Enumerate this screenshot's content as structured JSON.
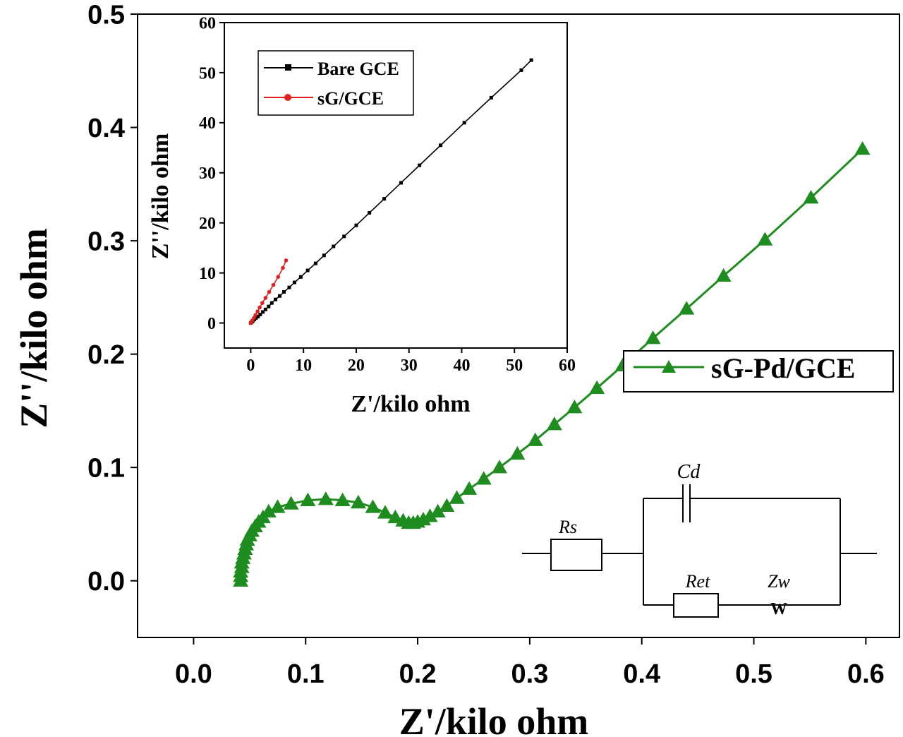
{
  "chart_data": [
    {
      "type": "line",
      "panel": "main",
      "title": "",
      "xlabel": "Z'/kilo ohm",
      "ylabel": "Z''/kilo ohm",
      "xlim": [
        -0.05,
        0.63
      ],
      "ylim": [
        -0.05,
        0.5
      ],
      "xticks": [
        0.0,
        0.1,
        0.2,
        0.3,
        0.4,
        0.5,
        0.6
      ],
      "yticks": [
        0.0,
        0.1,
        0.2,
        0.3,
        0.4,
        0.5
      ],
      "xtick_labels": [
        "0.0",
        "0.1",
        "0.2",
        "0.3",
        "0.4",
        "0.5",
        "0.6"
      ],
      "ytick_labels": [
        "0.0",
        "0.1",
        "0.2",
        "0.3",
        "0.4",
        "0.5"
      ],
      "legend_position": "middle-right",
      "series": [
        {
          "name": "sG-Pd/GCE",
          "color": "#1e8c1e",
          "marker": "triangle",
          "x": [
            0.042,
            0.042,
            0.042,
            0.043,
            0.043,
            0.044,
            0.045,
            0.046,
            0.047,
            0.048,
            0.05,
            0.052,
            0.055,
            0.058,
            0.062,
            0.067,
            0.075,
            0.087,
            0.102,
            0.118,
            0.133,
            0.147,
            0.16,
            0.171,
            0.18,
            0.187,
            0.192,
            0.196,
            0.2,
            0.205,
            0.211,
            0.218,
            0.226,
            0.235,
            0.246,
            0.259,
            0.273,
            0.289,
            0.305,
            0.322,
            0.34,
            0.36,
            0.383,
            0.41,
            0.44,
            0.473,
            0.51,
            0.551,
            0.597
          ],
          "y": [
            0.0,
            0.004,
            0.008,
            0.012,
            0.016,
            0.02,
            0.024,
            0.028,
            0.032,
            0.036,
            0.04,
            0.044,
            0.048,
            0.052,
            0.056,
            0.061,
            0.065,
            0.068,
            0.071,
            0.072,
            0.071,
            0.069,
            0.065,
            0.06,
            0.056,
            0.053,
            0.051,
            0.051,
            0.052,
            0.054,
            0.057,
            0.061,
            0.066,
            0.073,
            0.081,
            0.09,
            0.1,
            0.112,
            0.124,
            0.138,
            0.153,
            0.17,
            0.19,
            0.214,
            0.24,
            0.269,
            0.301,
            0.338,
            0.381
          ]
        }
      ],
      "circuit": {
        "labels": [
          "Cd",
          "Rs",
          "Ret",
          "Zw",
          "W"
        ]
      }
    },
    {
      "type": "line",
      "panel": "inset",
      "title": "",
      "xlabel": "Z'/kilo ohm",
      "ylabel": "Z''/kilo ohm",
      "xlim": [
        -5,
        60
      ],
      "ylim": [
        -5,
        60
      ],
      "xticks": [
        0,
        10,
        20,
        30,
        40,
        50,
        60
      ],
      "yticks": [
        0,
        10,
        20,
        30,
        40,
        50,
        60
      ],
      "xtick_labels": [
        "0",
        "10",
        "20",
        "30",
        "40",
        "50",
        "60"
      ],
      "ytick_labels": [
        "0",
        "10",
        "20",
        "30",
        "40",
        "50",
        "60"
      ],
      "legend_position": "top-left",
      "series": [
        {
          "name": "Bare GCE",
          "color": "#000000",
          "marker": "square",
          "x": [
            0.0,
            0.2,
            0.4,
            0.7,
            1.0,
            1.4,
            1.8,
            2.3,
            2.8,
            3.4,
            4.0,
            4.7,
            5.5,
            6.3,
            7.3,
            8.3,
            9.5,
            10.8,
            12.3,
            13.9,
            15.7,
            17.7,
            20.0,
            22.5,
            25.3,
            28.5,
            32.0,
            36.0,
            40.5,
            45.6,
            51.3,
            53.2
          ],
          "y": [
            0.0,
            0.2,
            0.4,
            0.7,
            1.0,
            1.3,
            1.7,
            2.2,
            2.7,
            3.3,
            4.0,
            4.7,
            5.4,
            6.2,
            7.1,
            8.1,
            9.2,
            10.5,
            11.9,
            13.5,
            15.3,
            17.3,
            19.5,
            22.0,
            24.8,
            28.0,
            31.5,
            35.5,
            40.0,
            45.0,
            50.5,
            52.5
          ]
        },
        {
          "name": "sG/GCE",
          "color": "#e02020",
          "marker": "circle",
          "x": [
            0.0,
            0.3,
            0.6,
            0.9,
            1.3,
            1.7,
            2.2,
            2.8,
            3.5,
            4.3,
            5.2,
            6.1,
            6.7
          ],
          "y": [
            0.0,
            0.5,
            1.0,
            1.6,
            2.3,
            3.1,
            4.0,
            5.0,
            6.2,
            7.6,
            9.2,
            11.0,
            12.5
          ]
        }
      ]
    }
  ]
}
